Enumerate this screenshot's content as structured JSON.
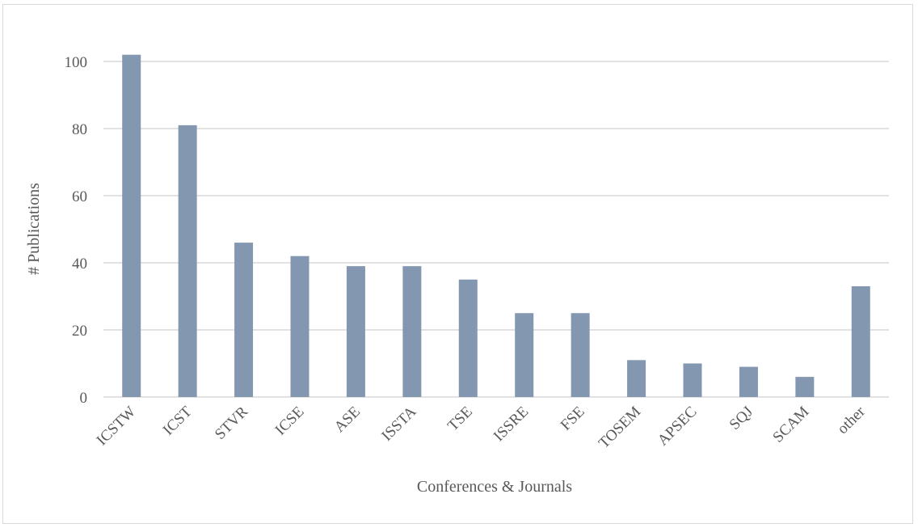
{
  "chart_data": {
    "type": "bar",
    "title": "",
    "xlabel": "Conferences & Journals",
    "ylabel": "# Publications",
    "categories": [
      "ICSTW",
      "ICST",
      "STVR",
      "ICSE",
      "ASE",
      "ISSTA",
      "TSE",
      "ISSRE",
      "FSE",
      "TOSEM",
      "APSEC",
      "SQJ",
      "SCAM",
      "other"
    ],
    "values": [
      102,
      81,
      46,
      42,
      39,
      39,
      35,
      25,
      25,
      11,
      10,
      9,
      6,
      33
    ],
    "ylim": [
      0,
      100
    ],
    "yticks": [
      0,
      20,
      40,
      60,
      80,
      100
    ],
    "grid": true,
    "legend": "none",
    "bar_color": "#8497b0",
    "grid_color": "#d9d9d9"
  }
}
